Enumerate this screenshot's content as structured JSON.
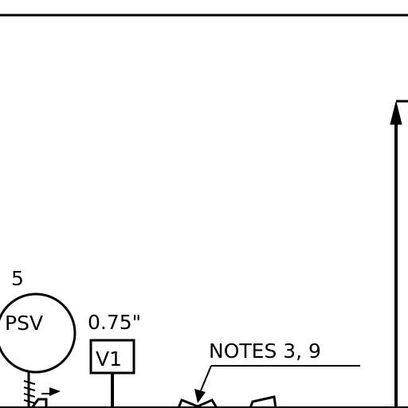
{
  "diagram": {
    "psv_tag_number": "5",
    "psv_label": "PSV",
    "pipe_size": "0.75\"",
    "valve_tag": "V1",
    "notes_callout": "NOTES  3,  9"
  },
  "colors": {
    "line": "#000000",
    "background": "#ffffff"
  }
}
